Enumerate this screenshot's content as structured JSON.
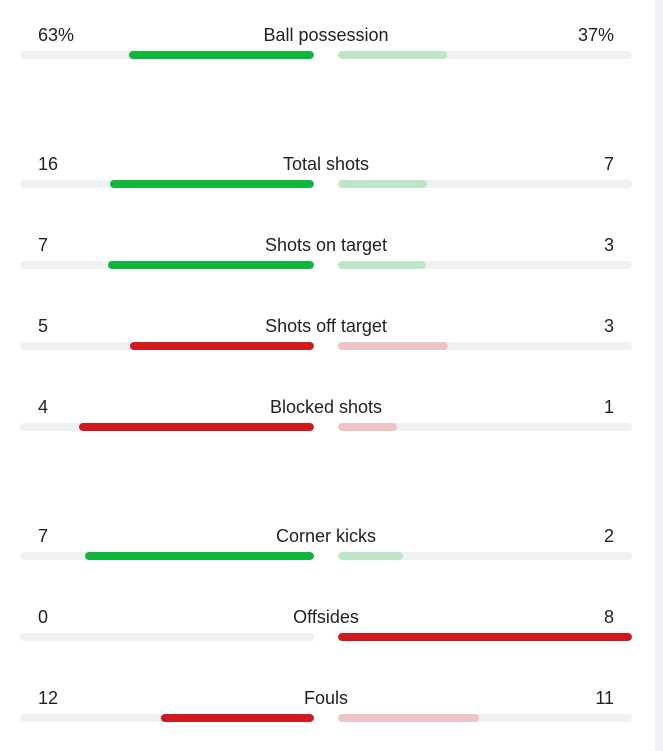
{
  "stats": [
    {
      "label": "Ball possession",
      "home": "63%",
      "away": "37%",
      "home_frac": 0.63,
      "away_frac": 0.37,
      "home_color": "#10b53c",
      "away_color": "#bfe5c9"
    },
    {
      "label": "Total shots",
      "home": "16",
      "away": "7",
      "home_frac": 0.695,
      "away_frac": 0.304,
      "home_color": "#10b53c",
      "away_color": "#bfe5c9"
    },
    {
      "label": "Shots on target",
      "home": "7",
      "away": "3",
      "home_frac": 0.7,
      "away_frac": 0.3,
      "home_color": "#10b53c",
      "away_color": "#bfe5c9"
    },
    {
      "label": "Shots off target",
      "home": "5",
      "away": "3",
      "home_frac": 0.625,
      "away_frac": 0.375,
      "home_color": "#d0181f",
      "away_color": "#efc4c6"
    },
    {
      "label": "Blocked shots",
      "home": "4",
      "away": "1",
      "home_frac": 0.8,
      "away_frac": 0.2,
      "home_color": "#d0181f",
      "away_color": "#efc4c6"
    },
    {
      "label": "Corner kicks",
      "home": "7",
      "away": "2",
      "home_frac": 0.778,
      "away_frac": 0.222,
      "home_color": "#10b53c",
      "away_color": "#bfe5c9"
    },
    {
      "label": "Offsides",
      "home": "0",
      "away": "8",
      "home_frac": 0.0,
      "away_frac": 1.0,
      "home_color": "#d0181f",
      "away_color": "#d0181f"
    },
    {
      "label": "Fouls",
      "home": "12",
      "away": "11",
      "home_frac": 0.522,
      "away_frac": 0.478,
      "home_color": "#d0181f",
      "away_color": "#efc4c6"
    }
  ]
}
